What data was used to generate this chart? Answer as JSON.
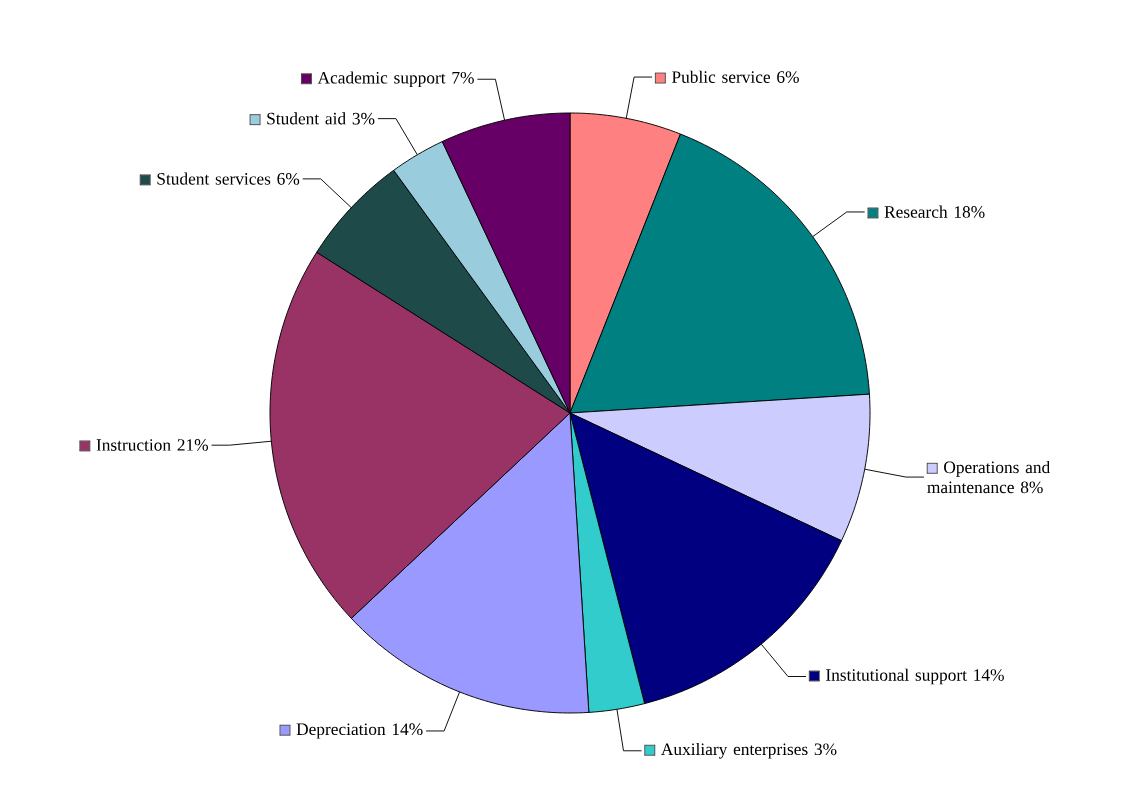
{
  "chart_data": {
    "type": "pie",
    "categories": [
      "Public service",
      "Research",
      "Operations and maintenance",
      "Institutional support",
      "Auxiliary enterprises",
      "Depreciation",
      "Instruction",
      "Student services",
      "Student aid",
      "Academic support"
    ],
    "values": [
      6,
      18,
      8,
      14,
      3,
      14,
      21,
      6,
      3,
      7
    ],
    "value_labels": [
      "6%",
      "18%",
      "8%",
      "14%",
      "3%",
      "14%",
      "21%",
      "6%",
      "3%",
      "7%"
    ],
    "colors": [
      "#ff8080",
      "#008080",
      "#ccccff",
      "#000080",
      "#33cccc",
      "#9999ff",
      "#993366",
      "#1e4a4a",
      "#99ccdd",
      "#660066"
    ],
    "legend": "right"
  }
}
